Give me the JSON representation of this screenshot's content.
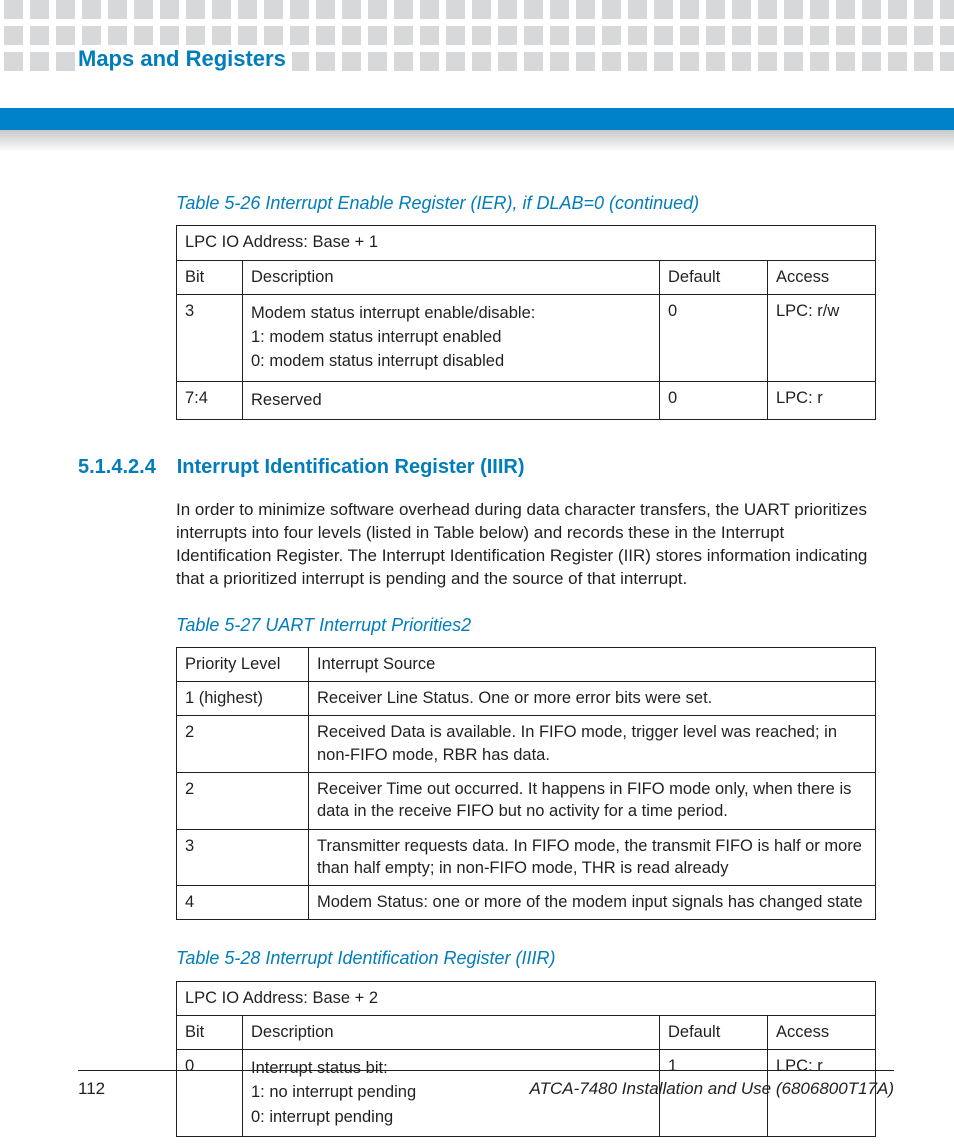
{
  "header": {
    "title": "Maps and Registers"
  },
  "table26": {
    "caption": "Table 5-26 Interrupt Enable Register (IER), if DLAB=0 (continued)",
    "addr_row": "LPC IO Address: Base + 1",
    "cols": [
      "Bit",
      "Description",
      "Default",
      "Access"
    ],
    "rows": [
      {
        "bit": "3",
        "desc": [
          "Modem status interrupt enable/disable:",
          "1: modem status interrupt enabled",
          "0: modem status interrupt disabled"
        ],
        "default": "0",
        "access": "LPC: r/w"
      },
      {
        "bit": "7:4",
        "desc": [
          "Reserved"
        ],
        "default": "0",
        "access": "LPC: r"
      }
    ],
    "col_widths": [
      "66px",
      "auto",
      "108px",
      "108px"
    ]
  },
  "section": {
    "num": "5.1.4.2.4",
    "title": "Interrupt Identification Register (IIIR)",
    "para": "In order to minimize software overhead during data character transfers, the UART prioritizes interrupts into four levels (listed in Table below) and records these in the Interrupt Identification Register. The Interrupt Identification Register (IIR) stores information indicating that a prioritized interrupt is pending and the source of that interrupt."
  },
  "table27": {
    "caption": "Table 5-27 UART Interrupt Priorities2",
    "cols": [
      "Priority Level",
      "Interrupt Source"
    ],
    "rows": [
      [
        "1 (highest)",
        "Receiver Line Status. One or more error bits were set."
      ],
      [
        "2",
        "Received Data is available. In FIFO mode, trigger level was reached; in non-FIFO mode, RBR has data."
      ],
      [
        "2",
        "Receiver Time out occurred. It happens in FIFO mode only, when there is data in the receive FIFO but no activity for a time period."
      ],
      [
        "3",
        "Transmitter requests data. In FIFO mode, the transmit FIFO is half or more than half empty; in non-FIFO mode, THR is read already"
      ],
      [
        "4",
        "Modem Status: one or more of the modem input signals has changed state"
      ]
    ],
    "col_widths": [
      "132px",
      "auto"
    ]
  },
  "table28": {
    "caption": "Table 5-28 Interrupt Identification Register (IIIR)",
    "addr_row": "LPC IO Address: Base + 2",
    "cols": [
      "Bit",
      "Description",
      "Default",
      "Access"
    ],
    "rows": [
      {
        "bit": "0",
        "desc": [
          "Interrupt status bit:",
          "1: no interrupt pending",
          "0: interrupt pending"
        ],
        "default": "1",
        "access": "LPC: r"
      }
    ],
    "col_widths": [
      "66px",
      "auto",
      "108px",
      "108px"
    ]
  },
  "footer": {
    "page": "112",
    "doc": "ATCA-7480 Installation and Use (6806800T17A)"
  },
  "colors": {
    "brand_blue": "#007dba",
    "bar_blue": "#0082c8",
    "deco_grey": "#d7d8d9",
    "text": "#231f20"
  }
}
